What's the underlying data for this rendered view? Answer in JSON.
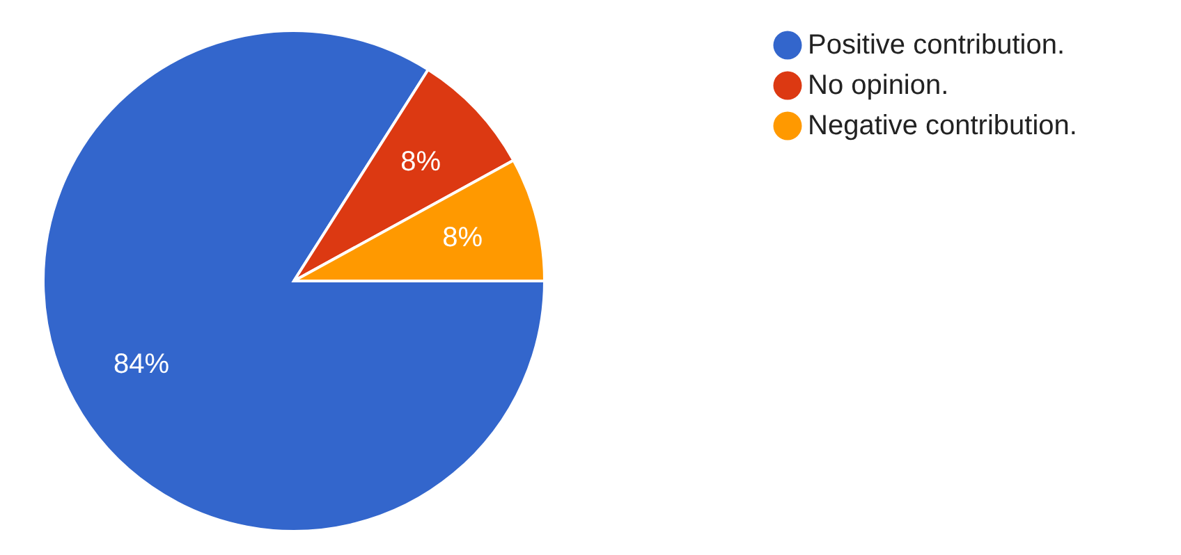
{
  "chart_data": {
    "type": "pie",
    "categories": [
      "Positive contribution.",
      "No opinion.",
      "Negative contribution."
    ],
    "values": [
      84,
      8,
      8
    ],
    "colors": [
      "#3366cc",
      "#dc3912",
      "#ff9900"
    ],
    "value_labels": [
      "84%",
      "8%",
      "8%"
    ],
    "legend": "top right"
  }
}
